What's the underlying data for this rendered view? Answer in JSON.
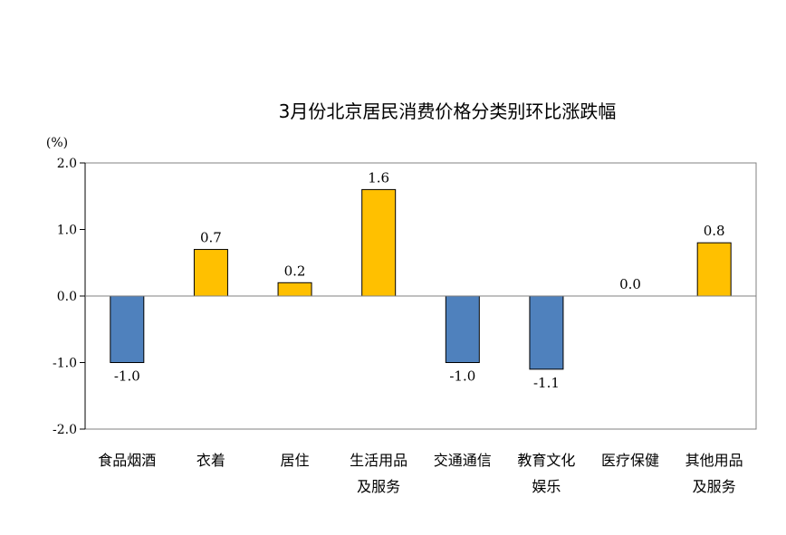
{
  "chart_data": {
    "type": "bar",
    "title": "3月份北京居民消费价格分类别环比涨跌幅",
    "unit_label": "(%)",
    "categories": [
      [
        "食品烟酒"
      ],
      [
        "衣着"
      ],
      [
        "居住"
      ],
      [
        "生活用品",
        "及服务"
      ],
      [
        "交通通信"
      ],
      [
        "教育文化",
        "娱乐"
      ],
      [
        "医疗保健"
      ],
      [
        "其他用品",
        "及服务"
      ]
    ],
    "values": [
      -1.0,
      0.7,
      0.2,
      1.6,
      -1.0,
      -1.1,
      0.0,
      0.8
    ],
    "value_labels": [
      "-1.0",
      "0.7",
      "0.2",
      "1.6",
      "-1.0",
      "-1.1",
      "0.0",
      "0.8"
    ],
    "ylim": [
      -2.0,
      2.0
    ],
    "yticks": [
      2.0,
      1.0,
      0.0,
      -1.0,
      -2.0
    ],
    "ytick_labels": [
      "2.0",
      "1.0",
      "0.0",
      "-1.0",
      "-2.0"
    ],
    "xlabel": "",
    "ylabel": "",
    "colors": {
      "positive": "#FFC000",
      "negative": "#4F81BD",
      "axis": "#808080",
      "border": "#000000"
    }
  }
}
